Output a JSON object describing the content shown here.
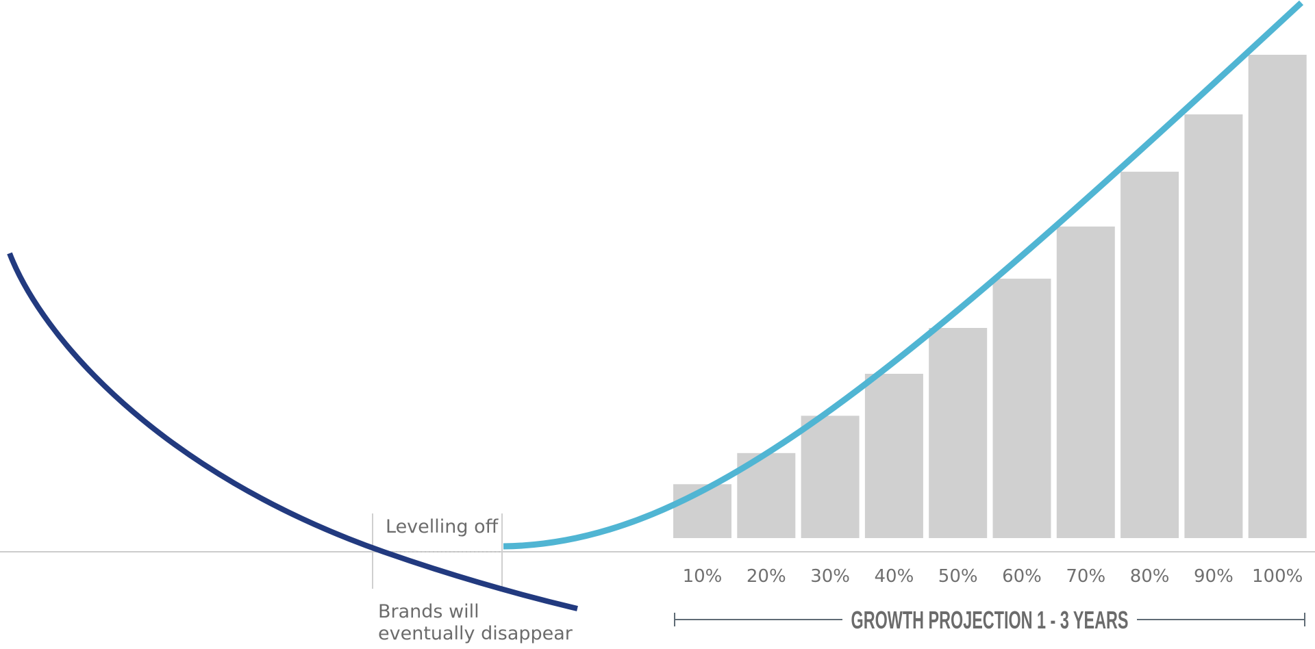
{
  "chart_data": {
    "type": "bar",
    "categories": [
      "10%",
      "20%",
      "30%",
      "40%",
      "50%",
      "60%",
      "70%",
      "80%",
      "90%",
      "100%"
    ],
    "values": [
      10,
      20,
      30,
      40,
      50,
      60,
      70,
      80,
      90,
      100
    ],
    "colors": {
      "bars": "#d0d0d0",
      "decline_curve": "#223a7f",
      "growth_curve": "#50b5d3",
      "baseline": "#cccccc",
      "span_bar": "#5f6b75"
    },
    "annotations": {
      "levelling": "Levelling off",
      "decline_line1": "Brands will",
      "decline_line2": "eventually disappear"
    },
    "span_label": "GROWTH PROJECTION 1 - 3 YEARS"
  }
}
